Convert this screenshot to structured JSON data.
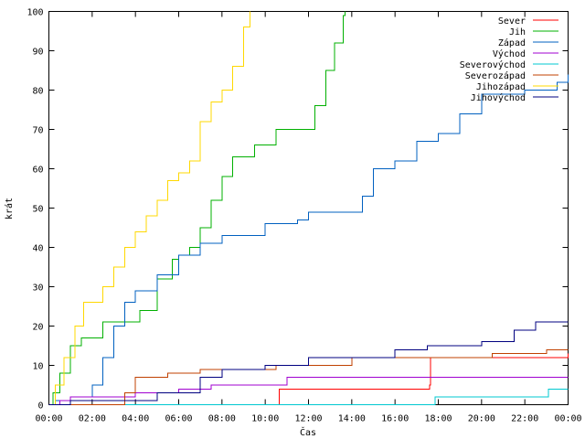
{
  "chart_data": {
    "type": "line",
    "title": "",
    "xlabel": "Čas",
    "ylabel": "krát",
    "xlim": [
      0,
      24
    ],
    "ylim": [
      0,
      100
    ],
    "x_ticks": [
      "00:00",
      "02:00",
      "04:00",
      "06:00",
      "08:00",
      "10:00",
      "12:00",
      "14:00",
      "16:00",
      "18:00",
      "20:00",
      "22:00",
      "00:00"
    ],
    "y_ticks": [
      "0",
      "10",
      "20",
      "30",
      "40",
      "50",
      "60",
      "70",
      "80",
      "90",
      "100"
    ],
    "grid": false,
    "legend_position": "top-right",
    "series": [
      {
        "name": "Sever",
        "color": "#ff0000",
        "points": [
          [
            0,
            0
          ],
          [
            10.6,
            0
          ],
          [
            10.65,
            4
          ],
          [
            17.6,
            5
          ],
          [
            17.65,
            12
          ],
          [
            24,
            13
          ]
        ]
      },
      {
        "name": "Jih",
        "color": "#00b000",
        "points": [
          [
            0,
            0
          ],
          [
            0.2,
            3
          ],
          [
            0.5,
            8
          ],
          [
            1.0,
            15
          ],
          [
            1.5,
            17
          ],
          [
            2.5,
            21
          ],
          [
            3.5,
            21
          ],
          [
            4.2,
            24
          ],
          [
            5.0,
            32
          ],
          [
            5.7,
            37
          ],
          [
            6.0,
            38
          ],
          [
            6.5,
            40
          ],
          [
            7.0,
            45
          ],
          [
            7.5,
            52
          ],
          [
            8.0,
            58
          ],
          [
            8.5,
            63
          ],
          [
            9.5,
            66
          ],
          [
            10.5,
            70
          ],
          [
            11.5,
            70
          ],
          [
            12.3,
            76
          ],
          [
            12.8,
            85
          ],
          [
            13.2,
            92
          ],
          [
            13.6,
            99
          ],
          [
            13.7,
            100
          ]
        ]
      },
      {
        "name": "Západ",
        "color": "#0060c0",
        "points": [
          [
            0,
            0
          ],
          [
            0.3,
            1
          ],
          [
            1.0,
            2
          ],
          [
            2.0,
            5
          ],
          [
            2.5,
            12
          ],
          [
            3.0,
            20
          ],
          [
            3.5,
            26
          ],
          [
            4.0,
            29
          ],
          [
            5.0,
            33
          ],
          [
            6.0,
            38
          ],
          [
            7.0,
            41
          ],
          [
            8.0,
            43
          ],
          [
            10.0,
            46
          ],
          [
            11.5,
            47
          ],
          [
            12.0,
            49
          ],
          [
            14.5,
            53
          ],
          [
            15.0,
            60
          ],
          [
            16.0,
            62
          ],
          [
            17.0,
            67
          ],
          [
            18.0,
            69
          ],
          [
            19.0,
            74
          ],
          [
            20.0,
            79
          ],
          [
            22.0,
            80
          ],
          [
            23.5,
            82
          ],
          [
            24,
            84
          ]
        ]
      },
      {
        "name": "Východ",
        "color": "#a000d0",
        "points": [
          [
            0,
            0
          ],
          [
            0.5,
            1
          ],
          [
            1.0,
            2
          ],
          [
            3.0,
            2
          ],
          [
            4.0,
            3
          ],
          [
            6.0,
            4
          ],
          [
            7.5,
            5
          ],
          [
            10.5,
            5
          ],
          [
            11.0,
            7
          ],
          [
            24,
            7
          ]
        ]
      },
      {
        "name": "Severovýchod",
        "color": "#00c8d0",
        "points": [
          [
            0,
            0
          ],
          [
            17.8,
            0
          ],
          [
            17.85,
            2
          ],
          [
            23.0,
            2
          ],
          [
            23.1,
            4
          ],
          [
            24,
            4
          ]
        ]
      },
      {
        "name": "Severozápad",
        "color": "#c04000",
        "points": [
          [
            0,
            0
          ],
          [
            3.5,
            3
          ],
          [
            4.0,
            7
          ],
          [
            5.5,
            8
          ],
          [
            7.0,
            9
          ],
          [
            10.5,
            10
          ],
          [
            13.5,
            10
          ],
          [
            14.0,
            12
          ],
          [
            18.0,
            12
          ],
          [
            20.5,
            13
          ],
          [
            23.0,
            14
          ],
          [
            24,
            14
          ]
        ]
      },
      {
        "name": "Jihozápad",
        "color": "#ffd800",
        "points": [
          [
            0,
            0
          ],
          [
            0.3,
            5
          ],
          [
            0.7,
            12
          ],
          [
            1.2,
            20
          ],
          [
            1.6,
            26
          ],
          [
            2.5,
            30
          ],
          [
            3.0,
            35
          ],
          [
            3.5,
            40
          ],
          [
            4.0,
            44
          ],
          [
            4.5,
            48
          ],
          [
            5.0,
            52
          ],
          [
            5.5,
            57
          ],
          [
            6.0,
            59
          ],
          [
            6.5,
            62
          ],
          [
            7.0,
            72
          ],
          [
            7.5,
            77
          ],
          [
            8.0,
            80
          ],
          [
            8.5,
            86
          ],
          [
            9.0,
            96
          ],
          [
            9.3,
            100
          ]
        ]
      },
      {
        "name": "Jihovýchod",
        "color": "#000080",
        "points": [
          [
            0,
            0
          ],
          [
            1.0,
            1
          ],
          [
            3.0,
            1
          ],
          [
            5.0,
            3
          ],
          [
            7.0,
            7
          ],
          [
            8.0,
            9
          ],
          [
            10.0,
            10
          ],
          [
            12.0,
            12
          ],
          [
            16.0,
            14
          ],
          [
            17.5,
            15
          ],
          [
            20.0,
            16
          ],
          [
            21.5,
            19
          ],
          [
            22.5,
            21
          ],
          [
            24,
            21
          ]
        ]
      }
    ]
  }
}
